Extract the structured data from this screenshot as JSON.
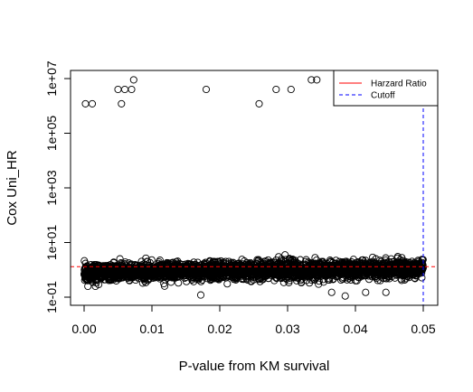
{
  "chart_data": {
    "type": "scatter",
    "title": "",
    "xlabel": "P-value from KM survival",
    "ylabel": "Cox Uni_HR",
    "xlim": [
      0,
      0.05
    ],
    "ylim": [
      0.1,
      10000000
    ],
    "y_scale": "log",
    "x_ticks": [
      {
        "value": 0.0,
        "label": "0.00"
      },
      {
        "value": 0.01,
        "label": "0.01"
      },
      {
        "value": 0.02,
        "label": "0.02"
      },
      {
        "value": 0.03,
        "label": "0.03"
      },
      {
        "value": 0.04,
        "label": "0.04"
      },
      {
        "value": 0.05,
        "label": "0.05"
      }
    ],
    "y_ticks": [
      {
        "value": 0.1,
        "label": "1e-01"
      },
      {
        "value": 10,
        "label": "1e+01"
      },
      {
        "value": 1000,
        "label": "1e+03"
      },
      {
        "value": 100000,
        "label": "1e+05"
      },
      {
        "value": 10000000,
        "label": "1e+07"
      }
    ],
    "grid": false,
    "legend": {
      "position": "top-right",
      "entries": [
        {
          "label": "Harzard Ratio",
          "color": "#ff0000",
          "style": "solid"
        },
        {
          "label": "Cutoff",
          "color": "#0000ff",
          "style": "dashed"
        }
      ]
    },
    "reference_lines": [
      {
        "name": "Harzard Ratio",
        "orientation": "horizontal",
        "value": 1.3,
        "color": "#ff0000",
        "style": "dashed"
      },
      {
        "name": "Cutoff",
        "orientation": "vertical",
        "value": 0.05,
        "color": "#0000ff",
        "style": "dashed"
      }
    ],
    "outliers": [
      {
        "x": 0.0002,
        "y": 1200000
      },
      {
        "x": 0.0012,
        "y": 1200000
      },
      {
        "x": 0.005,
        "y": 4000000
      },
      {
        "x": 0.0055,
        "y": 1200000
      },
      {
        "x": 0.006,
        "y": 4000000
      },
      {
        "x": 0.007,
        "y": 4000000
      },
      {
        "x": 0.0073,
        "y": 9000000
      },
      {
        "x": 0.018,
        "y": 4000000
      },
      {
        "x": 0.0258,
        "y": 1200000
      },
      {
        "x": 0.0283,
        "y": 4000000
      },
      {
        "x": 0.0305,
        "y": 4000000
      },
      {
        "x": 0.0335,
        "y": 9000000
      },
      {
        "x": 0.0343,
        "y": 9000000
      },
      {
        "x": 0.019,
        "y": 2.0
      },
      {
        "x": 0.0203,
        "y": 0.7
      },
      {
        "x": 0.0077,
        "y": 1.2
      },
      {
        "x": 0.0098,
        "y": 0.8
      },
      {
        "x": 0.0257,
        "y": 0.45
      },
      {
        "x": 0.004,
        "y": 0.45
      },
      {
        "x": 0.001,
        "y": 0.5
      },
      {
        "x": 0.0172,
        "y": 0.12
      },
      {
        "x": 0.0385,
        "y": 0.11
      },
      {
        "x": 0.0365,
        "y": 0.15
      },
      {
        "x": 0.032,
        "y": 0.35
      },
      {
        "x": 0.0445,
        "y": 0.15
      },
      {
        "x": 0.04,
        "y": 0.4
      },
      {
        "x": 0.0415,
        "y": 0.15
      }
    ],
    "dense_band": {
      "description": "thousands of points concentrated near HR 1",
      "x_range": [
        0,
        0.05
      ],
      "y_center_at_x0": 0.8,
      "y_center_at_x005": 1.1,
      "y_spread_log10": 0.35,
      "count": 3200
    }
  }
}
